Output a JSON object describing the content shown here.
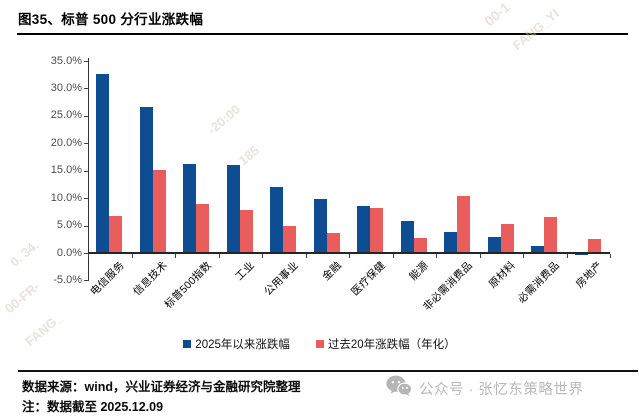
{
  "title": "图35、标普 500 分行业涨跌幅",
  "chart_data": {
    "type": "bar",
    "title": "图35、标普 500 分行业涨跌幅",
    "categories": [
      "电信服务",
      "信息技术",
      "标普500指数",
      "工业",
      "公用事业",
      "金融",
      "医疗保健",
      "能源",
      "非必需消费品",
      "原材料",
      "必需消费品",
      "房地产"
    ],
    "series": [
      {
        "name": "2025年以来涨跌幅",
        "color": "#0E4D92",
        "values": [
          32.7,
          26.7,
          16.3,
          16.0,
          12.0,
          9.8,
          8.5,
          5.8,
          3.8,
          2.9,
          1.3,
          -0.4
        ]
      },
      {
        "name": "过去20年涨跌幅（年化）",
        "color": "#EA5D5D",
        "values": [
          6.8,
          15.2,
          8.9,
          7.8,
          5.0,
          3.6,
          8.2,
          2.8,
          10.4,
          5.3,
          6.5,
          2.5
        ]
      }
    ],
    "xlabel": "",
    "ylabel": "",
    "ylim": [
      -5,
      35
    ],
    "ytick_step": 5,
    "ytick_labels": [
      "35.0%",
      "30.0%",
      "25.0%",
      "20.0%",
      "15.0%",
      "10.0%",
      "5.0%",
      "0.0%",
      "-5.0%"
    ],
    "grid": false,
    "legend_position": "bottom",
    "x_label_rotation_deg": -45
  },
  "footer": {
    "source_line": "数据来源：wind，兴业证券经济与金融研究院整理",
    "note_line": "注：数据截至 2025.12.09",
    "wechat_label": "公众号 · 张忆东策略世界"
  },
  "watermarks": [
    "00-1",
    "FANG_YI",
    "-20:00",
    "185",
    "0. 34.",
    "00-FR-",
    "FANG_"
  ]
}
